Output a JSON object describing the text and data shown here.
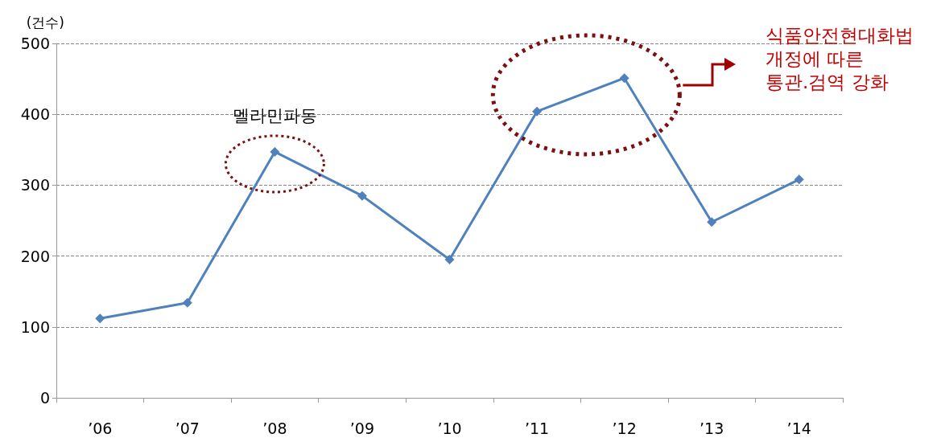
{
  "chart_data": {
    "type": "line",
    "ylabel": "(건수)",
    "categories": [
      "’06",
      "’07",
      "’08",
      "’09",
      "’10",
      "’11",
      "’12",
      "’13",
      "’14"
    ],
    "series": [
      {
        "color": "#4f81bd",
        "values": [
          112,
          134,
          347,
          285,
          195,
          404,
          451,
          248,
          308
        ]
      }
    ],
    "ylim": [
      0,
      500
    ],
    "yticks": [
      0,
      100,
      200,
      300,
      400,
      500
    ],
    "grid": "y",
    "marker": "diamond",
    "line_style": "solid",
    "annotations": [
      {
        "text": "멜라민파동",
        "x": "’08",
        "y": 347
      },
      "식품안전현대화법\n개정에 따른\n통관.검역 강화"
    ]
  }
}
